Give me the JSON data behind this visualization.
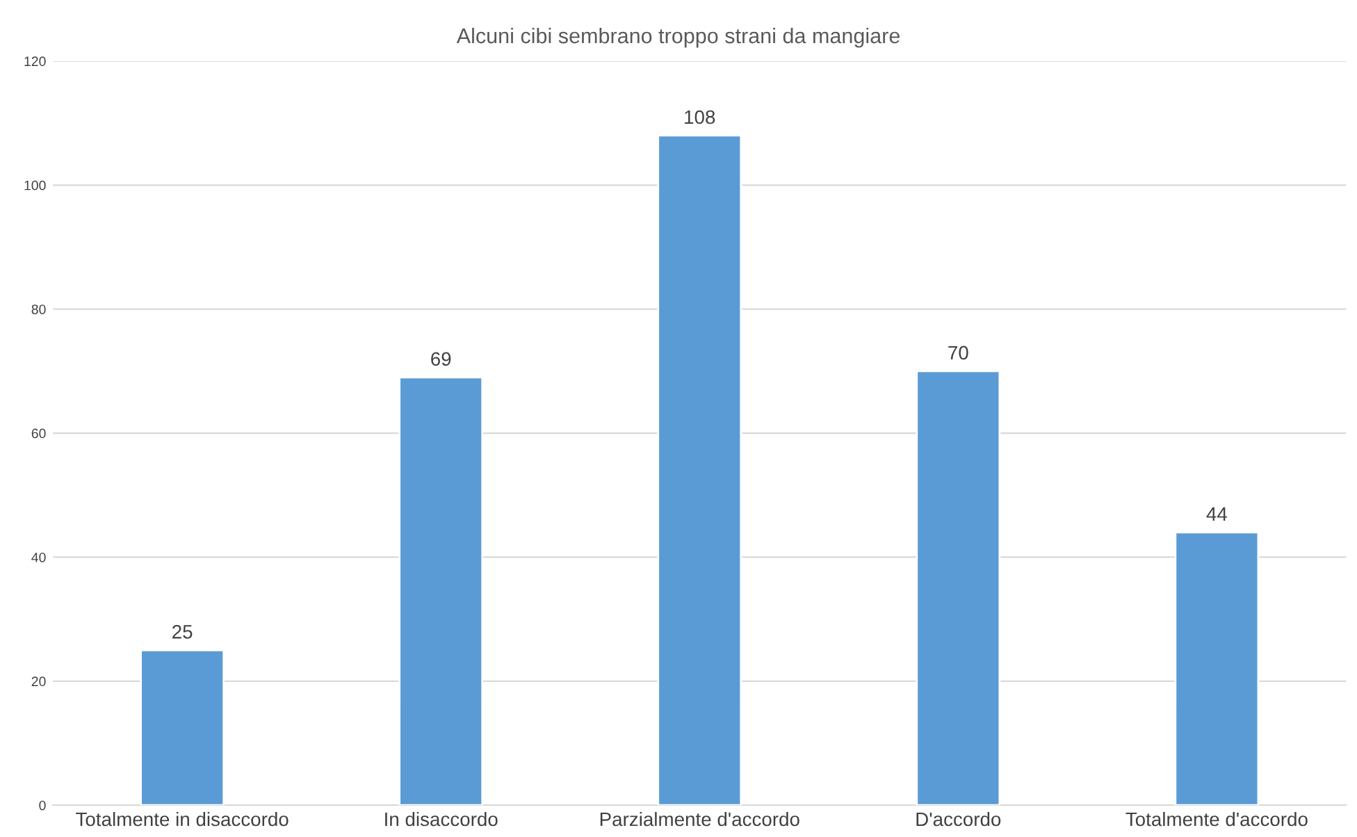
{
  "chart_data": {
    "type": "bar",
    "title": "Alcuni cibi sembrano troppo strani da mangiare",
    "categories": [
      "Totalmente in disaccordo",
      "In disaccordo",
      "Parzialmente d'accordo",
      "D'accordo",
      "Totalmente d'accordo"
    ],
    "values": [
      25,
      69,
      108,
      70,
      44
    ],
    "color": "#5b9bd5",
    "ylim": [
      0,
      120
    ],
    "yticks": [
      0,
      20,
      40,
      60,
      80,
      100,
      120
    ],
    "grid": "y",
    "data_labels": true
  }
}
